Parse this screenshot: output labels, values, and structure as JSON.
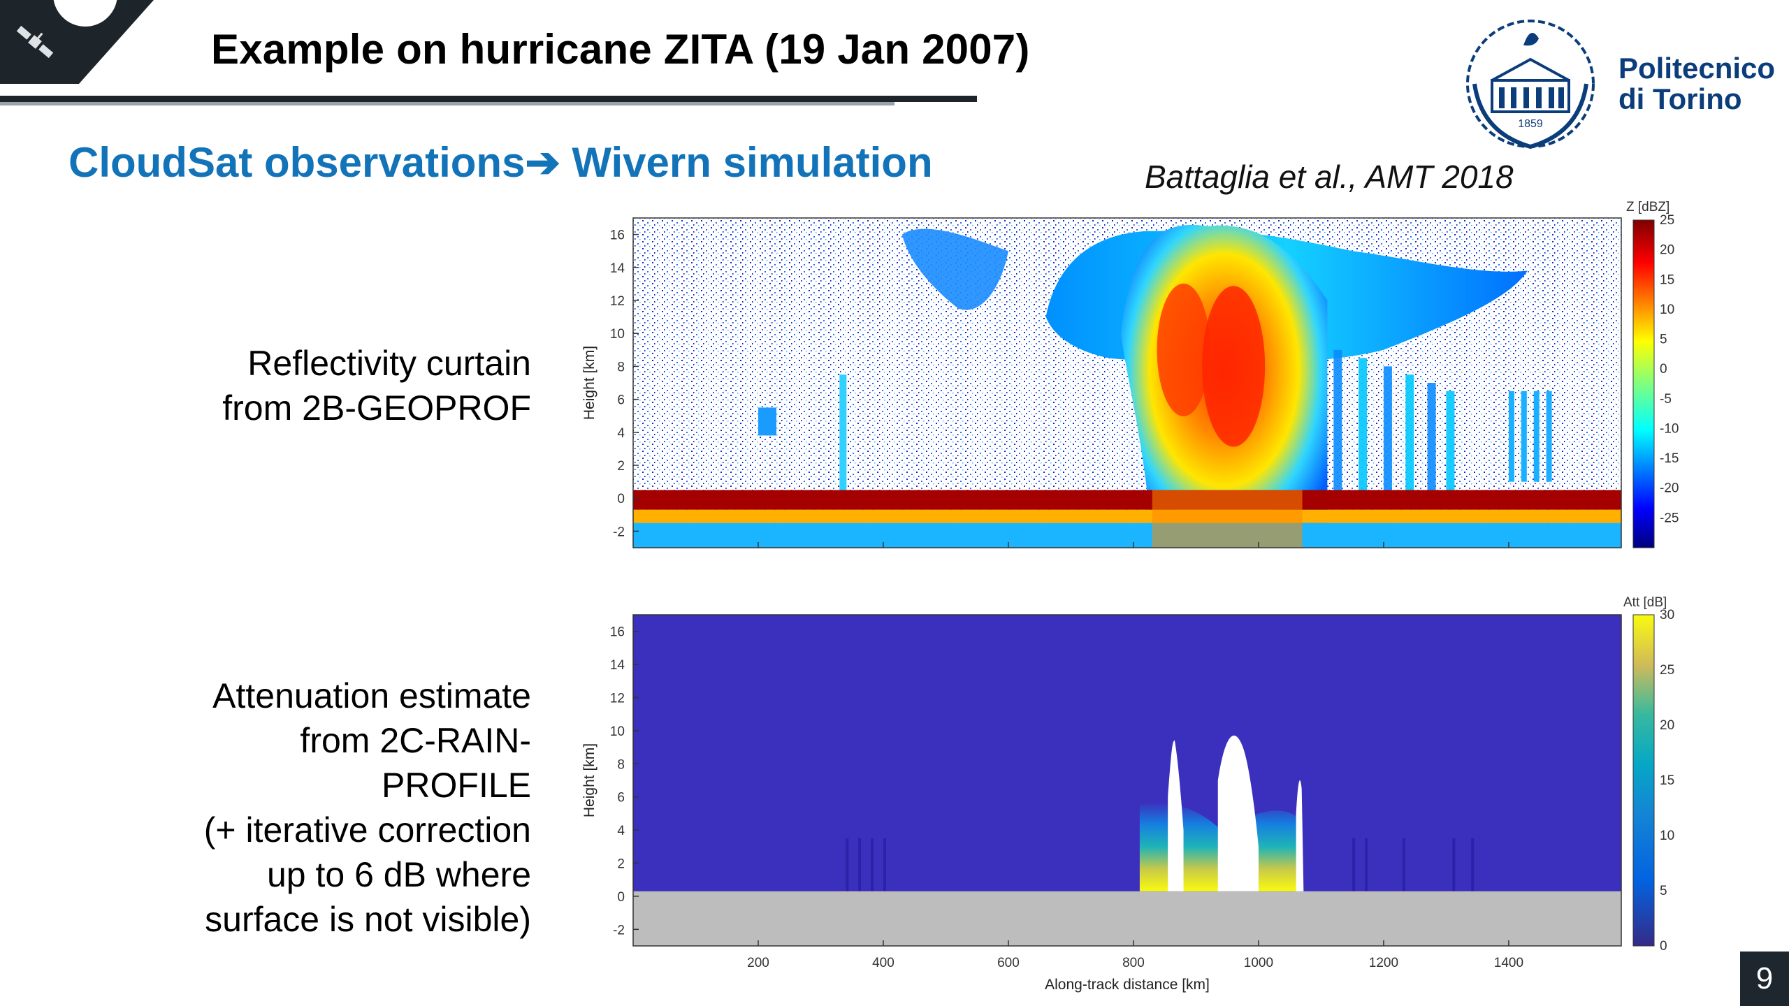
{
  "slide": {
    "title": "Example on hurricane ZITA (19 Jan 2007)",
    "subtitle_left": "CloudSat observations",
    "subtitle_arrow": "➔",
    "subtitle_right": "Wivern simulation",
    "citation": "Battaglia et al., AMT 2018",
    "page_number": "9"
  },
  "logo": {
    "line1": "Politecnico",
    "line2": "di Torino",
    "year": "1859"
  },
  "captions": {
    "top_lines": [
      "Reflectivity curtain",
      "from 2B-GEOPROF"
    ],
    "bottom_lines": [
      "Attenuation estimate",
      "from 2C-RAIN-",
      "PROFILE",
      "(+ iterative correction",
      "up to 6 dB where",
      "surface is not visible)"
    ]
  },
  "colors": {
    "title": "#000000",
    "subtitle": "#1273b9",
    "logo_blue": "#0b3d7a",
    "header_dark": "#1d252b",
    "attenuation_background": "#3b2fbd",
    "surface_grey": "#bdbdbd"
  },
  "chart_data": [
    {
      "type": "heatmap",
      "name": "reflectivity",
      "ylabel": "Height [km]",
      "y_ticks": [
        "16",
        "14",
        "12",
        "10",
        "8",
        "6",
        "4",
        "2",
        "0",
        "-2"
      ],
      "colorbar_label": "Z [dBZ]",
      "colorbar_ticks": [
        "25",
        "20",
        "15",
        "10",
        "5",
        "0",
        "-5",
        "-10",
        "-15",
        "-20",
        "-25"
      ],
      "colorbar_range": [
        -30,
        25
      ],
      "ylim": [
        -3,
        17
      ],
      "xlim": [
        0,
        1580
      ],
      "colormap": "jet"
    },
    {
      "type": "heatmap",
      "name": "attenuation",
      "ylabel": "Height [km]",
      "xlabel": "Along-track distance [km]",
      "y_ticks": [
        "16",
        "14",
        "12",
        "10",
        "8",
        "6",
        "4",
        "2",
        "0",
        "-2"
      ],
      "x_ticks": [
        "200",
        "400",
        "600",
        "800",
        "1000",
        "1200",
        "1400"
      ],
      "colorbar_label": "Att [dB]",
      "colorbar_ticks": [
        "30",
        "25",
        "20",
        "15",
        "10",
        "5",
        "0"
      ],
      "colorbar_range": [
        0,
        30
      ],
      "ylim": [
        -3,
        17
      ],
      "xlim": [
        0,
        1580
      ],
      "colormap": "parula"
    }
  ]
}
